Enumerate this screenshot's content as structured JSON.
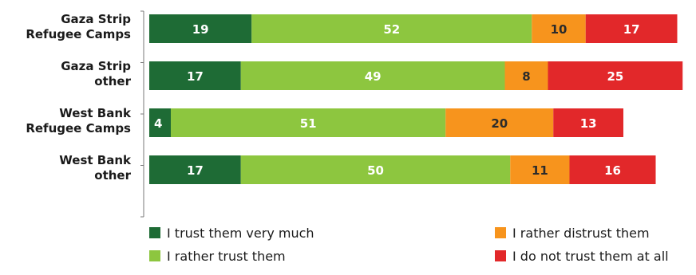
{
  "chart_data": {
    "type": "bar",
    "orientation": "horizontal",
    "stacked": true,
    "title": "",
    "xlabel": "",
    "ylabel": "",
    "xlim": [
      0,
      100
    ],
    "grid": false,
    "legend_position": "bottom",
    "categories": [
      [
        "Gaza Strip",
        "Refugee Camps"
      ],
      [
        "Gaza Strip",
        "other"
      ],
      [
        "West Bank",
        "Refugee Camps"
      ],
      [
        "West Bank",
        "other"
      ]
    ],
    "series": [
      {
        "name": "I trust them very much",
        "color": "#1e6b35",
        "values": [
          19,
          17,
          4,
          17
        ]
      },
      {
        "name": "I rather trust them",
        "color": "#8dc63f",
        "values": [
          52,
          49,
          51,
          50
        ]
      },
      {
        "name": "I rather distrust them",
        "color": "#f7941d",
        "values": [
          10,
          8,
          20,
          11
        ]
      },
      {
        "name": "I do not trust them at all",
        "color": "#e2282a",
        "values": [
          17,
          25,
          13,
          16
        ]
      }
    ]
  }
}
